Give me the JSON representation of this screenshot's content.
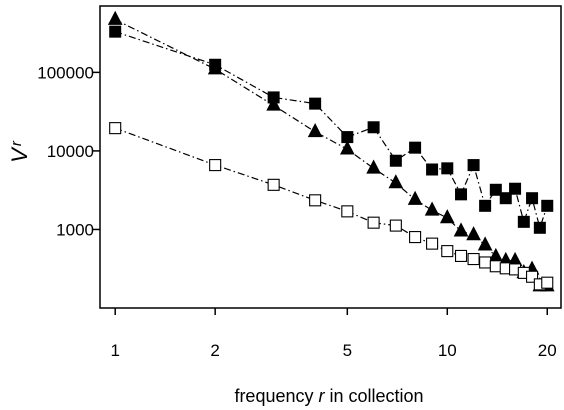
{
  "chart_data": {
    "type": "scatter",
    "x_scale": "log",
    "y_scale": "log",
    "x_ticks": [
      1,
      2,
      5,
      10,
      20
    ],
    "x_tick_labels": [
      "1",
      "2",
      "5",
      "10",
      "20"
    ],
    "y_ticks": [
      1000,
      10000,
      100000
    ],
    "y_tick_labels": [
      "1000",
      "10000",
      "100000"
    ],
    "xlim": [
      0.9,
      22
    ],
    "ylim": [
      100,
      700000
    ],
    "xlabel": {
      "prefix": "frequency ",
      "italic": "r",
      "suffix": " in collection"
    },
    "ylabel": {
      "main": "V",
      "sub": "r"
    },
    "grid": false,
    "legend": "none",
    "series": [
      {
        "marker": "filled-square",
        "line": "dash-dot",
        "color": "#000000",
        "x": [
          1,
          2,
          3,
          4,
          5,
          6,
          7,
          8,
          9,
          10,
          11,
          12,
          13,
          14,
          15,
          16,
          17,
          18,
          19,
          20
        ],
        "values": [
          330000,
          125000,
          48000,
          40000,
          15000,
          20000,
          7500,
          11000,
          5800,
          6000,
          2800,
          6600,
          2000,
          3200,
          2500,
          3300,
          1250,
          2500,
          1050,
          2000
        ]
      },
      {
        "marker": "filled-triangle",
        "line": "dash-dot",
        "color": "#000000",
        "x": [
          1,
          2,
          3,
          4,
          5,
          6,
          7,
          8,
          9,
          10,
          11,
          12,
          13,
          14,
          15,
          16,
          17,
          18,
          19,
          20
        ],
        "values": [
          470000,
          110000,
          38000,
          17500,
          10500,
          6000,
          3900,
          2400,
          1750,
          1400,
          950,
          850,
          630,
          450,
          400,
          400,
          280,
          310,
          190,
          190
        ]
      },
      {
        "marker": "open-square",
        "line": "dash-dot",
        "color": "#000000",
        "x": [
          1,
          2,
          3,
          4,
          5,
          6,
          7,
          8,
          9,
          10,
          11,
          12,
          13,
          14,
          15,
          16,
          17,
          18,
          19,
          20
        ],
        "values": [
          19500,
          6600,
          3700,
          2350,
          1700,
          1220,
          1120,
          800,
          660,
          530,
          460,
          420,
          380,
          340,
          320,
          310,
          280,
          250,
          200,
          210
        ]
      }
    ]
  }
}
